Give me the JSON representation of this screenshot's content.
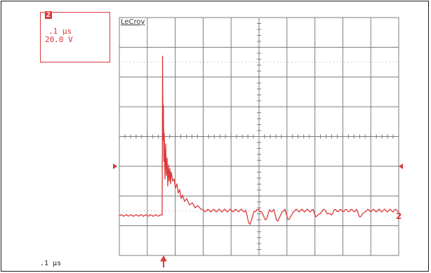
{
  "channel": {
    "number": "2",
    "timebase": ".1 μs",
    "volts_per_div": "20.0 V"
  },
  "brand": "LeCroy",
  "footer": {
    "timebase": ".1 μs"
  },
  "trace": {
    "label": "2",
    "color": "#d93a3a"
  },
  "colors": {
    "grid": "#7c7c7c",
    "trace": "#d93a3a",
    "frame": "#1c1c1c"
  }
}
